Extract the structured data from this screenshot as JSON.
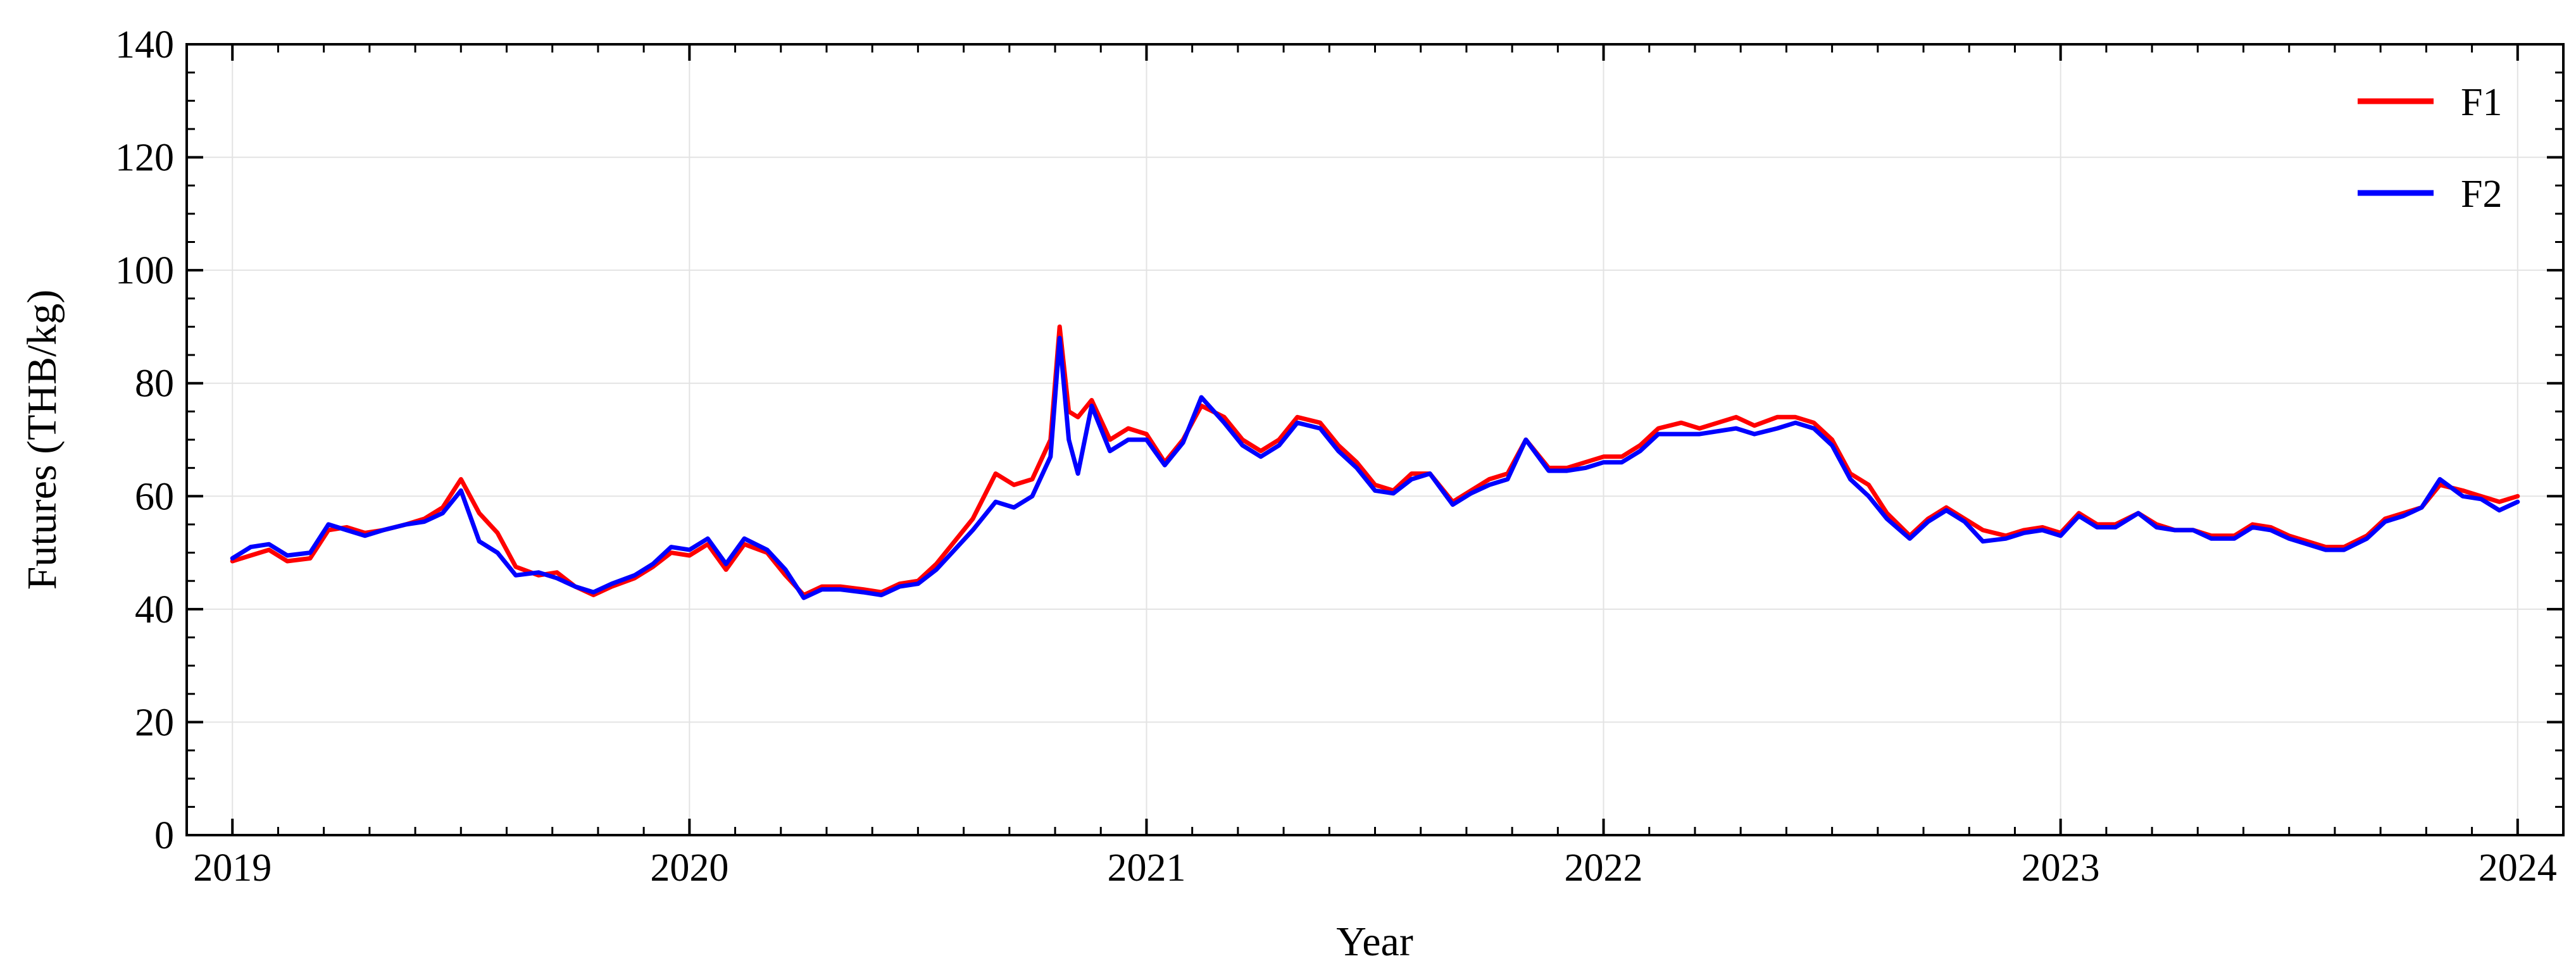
{
  "chart_data": {
    "type": "line",
    "title": "",
    "xlabel": "Year",
    "ylabel": "Futures (THB/kg)",
    "xlim": [
      2018.9,
      2024.1
    ],
    "ylim": [
      0,
      140
    ],
    "x_ticks": [
      2019,
      2020,
      2021,
      2022,
      2023,
      2024
    ],
    "x_tick_labels": [
      "2019",
      "2020",
      "2021",
      "2022",
      "2023",
      "2024"
    ],
    "y_ticks": [
      0,
      20,
      40,
      60,
      80,
      100,
      120,
      140
    ],
    "y_tick_labels": [
      "0",
      "20",
      "40",
      "60",
      "80",
      "100",
      "120",
      "140"
    ],
    "grid": true,
    "legend": "top-right",
    "series": [
      {
        "name": "F1",
        "color": "#ff0000",
        "x": [
          2019.0,
          2019.04,
          2019.08,
          2019.12,
          2019.17,
          2019.21,
          2019.25,
          2019.29,
          2019.33,
          2019.38,
          2019.42,
          2019.46,
          2019.5,
          2019.54,
          2019.58,
          2019.62,
          2019.67,
          2019.71,
          2019.75,
          2019.79,
          2019.83,
          2019.88,
          2019.92,
          2019.96,
          2020.0,
          2020.04,
          2020.08,
          2020.12,
          2020.17,
          2020.21,
          2020.25,
          2020.29,
          2020.33,
          2020.38,
          2020.42,
          2020.46,
          2020.5,
          2020.54,
          2020.58,
          2020.62,
          2020.67,
          2020.71,
          2020.75,
          2020.79,
          2020.81,
          2020.83,
          2020.85,
          2020.88,
          2020.92,
          2020.96,
          2021.0,
          2021.04,
          2021.08,
          2021.12,
          2021.17,
          2021.21,
          2021.25,
          2021.29,
          2021.33,
          2021.38,
          2021.42,
          2021.46,
          2021.5,
          2021.54,
          2021.58,
          2021.62,
          2021.67,
          2021.71,
          2021.75,
          2021.79,
          2021.83,
          2021.88,
          2021.92,
          2021.96,
          2022.0,
          2022.04,
          2022.08,
          2022.12,
          2022.17,
          2022.21,
          2022.25,
          2022.29,
          2022.33,
          2022.38,
          2022.42,
          2022.46,
          2022.5,
          2022.54,
          2022.58,
          2022.62,
          2022.67,
          2022.71,
          2022.75,
          2022.79,
          2022.83,
          2022.88,
          2022.92,
          2022.96,
          2023.0,
          2023.04,
          2023.08,
          2023.12,
          2023.17,
          2023.21,
          2023.25,
          2023.29,
          2023.33,
          2023.38,
          2023.42,
          2023.46,
          2023.5,
          2023.54,
          2023.58,
          2023.62,
          2023.67,
          2023.71,
          2023.75,
          2023.79,
          2023.83,
          2023.88,
          2023.92,
          2023.96,
          2024.0
        ],
        "y": [
          48.5,
          49.5,
          50.5,
          48.5,
          49.0,
          54.0,
          54.5,
          53.5,
          54.0,
          55.0,
          56.0,
          58.0,
          63.0,
          57.0,
          53.5,
          47.5,
          46.0,
          46.5,
          44.0,
          42.5,
          44.0,
          45.5,
          47.5,
          50.0,
          49.5,
          51.5,
          47.0,
          51.5,
          50.0,
          46.0,
          42.5,
          44.0,
          44.0,
          43.5,
          43.0,
          44.5,
          45.0,
          48.0,
          52.0,
          56.0,
          64.0,
          62.0,
          63.0,
          70.0,
          90.0,
          75.0,
          74.0,
          77.0,
          70.0,
          72.0,
          71.0,
          66.0,
          70.0,
          76.0,
          74.0,
          70.0,
          68.0,
          70.0,
          74.0,
          73.0,
          69.0,
          66.0,
          62.0,
          61.0,
          64.0,
          64.0,
          59.0,
          61.0,
          63.0,
          64.0,
          70.0,
          65.0,
          65.0,
          66.0,
          67.0,
          67.0,
          69.0,
          72.0,
          73.0,
          72.0,
          73.0,
          74.0,
          72.5,
          74.0,
          74.0,
          73.0,
          70.0,
          64.0,
          62.0,
          57.0,
          53.0,
          56.0,
          58.0,
          56.0,
          54.0,
          53.0,
          54.0,
          54.5,
          53.5,
          57.0,
          55.0,
          55.0,
          57.0,
          55.0,
          54.0,
          54.0,
          53.0,
          53.0,
          55.0,
          54.5,
          53.0,
          52.0,
          51.0,
          51.0,
          53.0,
          56.0,
          57.0,
          58.0,
          62.0,
          61.0,
          60.0,
          59.0,
          60.0
        ]
      },
      {
        "name": "F2",
        "color": "#0000ff",
        "x": [
          2019.0,
          2019.04,
          2019.08,
          2019.12,
          2019.17,
          2019.21,
          2019.25,
          2019.29,
          2019.33,
          2019.38,
          2019.42,
          2019.46,
          2019.5,
          2019.54,
          2019.58,
          2019.62,
          2019.67,
          2019.71,
          2019.75,
          2019.79,
          2019.83,
          2019.88,
          2019.92,
          2019.96,
          2020.0,
          2020.04,
          2020.08,
          2020.12,
          2020.17,
          2020.21,
          2020.25,
          2020.29,
          2020.33,
          2020.38,
          2020.42,
          2020.46,
          2020.5,
          2020.54,
          2020.58,
          2020.62,
          2020.67,
          2020.71,
          2020.75,
          2020.79,
          2020.81,
          2020.83,
          2020.85,
          2020.88,
          2020.92,
          2020.96,
          2021.0,
          2021.04,
          2021.08,
          2021.12,
          2021.17,
          2021.21,
          2021.25,
          2021.29,
          2021.33,
          2021.38,
          2021.42,
          2021.46,
          2021.5,
          2021.54,
          2021.58,
          2021.62,
          2021.67,
          2021.71,
          2021.75,
          2021.79,
          2021.83,
          2021.88,
          2021.92,
          2021.96,
          2022.0,
          2022.04,
          2022.08,
          2022.12,
          2022.17,
          2022.21,
          2022.25,
          2022.29,
          2022.33,
          2022.38,
          2022.42,
          2022.46,
          2022.5,
          2022.54,
          2022.58,
          2022.62,
          2022.67,
          2022.71,
          2022.75,
          2022.79,
          2022.83,
          2022.88,
          2022.92,
          2022.96,
          2023.0,
          2023.04,
          2023.08,
          2023.12,
          2023.17,
          2023.21,
          2023.25,
          2023.29,
          2023.33,
          2023.38,
          2023.42,
          2023.46,
          2023.5,
          2023.54,
          2023.58,
          2023.62,
          2023.67,
          2023.71,
          2023.75,
          2023.79,
          2023.83,
          2023.88,
          2023.92,
          2023.96,
          2024.0
        ],
        "y": [
          49.0,
          51.0,
          51.5,
          49.5,
          50.0,
          55.0,
          54.0,
          53.0,
          54.0,
          55.0,
          55.5,
          57.0,
          61.0,
          52.0,
          50.0,
          46.0,
          46.5,
          45.5,
          44.0,
          43.0,
          44.5,
          46.0,
          48.0,
          51.0,
          50.5,
          52.5,
          48.0,
          52.5,
          50.5,
          47.0,
          42.0,
          43.5,
          43.5,
          43.0,
          42.5,
          44.0,
          44.5,
          47.0,
          50.5,
          54.0,
          59.0,
          58.0,
          60.0,
          67.0,
          88.0,
          70.0,
          64.0,
          76.0,
          68.0,
          70.0,
          70.0,
          65.5,
          69.5,
          77.5,
          73.0,
          69.0,
          67.0,
          69.0,
          73.0,
          72.0,
          68.0,
          65.0,
          61.0,
          60.5,
          63.0,
          64.0,
          58.5,
          60.5,
          62.0,
          63.0,
          70.0,
          64.5,
          64.5,
          65.0,
          66.0,
          66.0,
          68.0,
          71.0,
          71.0,
          71.0,
          71.5,
          72.0,
          71.0,
          72.0,
          73.0,
          72.0,
          69.0,
          63.0,
          60.0,
          56.0,
          52.5,
          55.5,
          57.5,
          55.5,
          52.0,
          52.5,
          53.5,
          54.0,
          53.0,
          56.5,
          54.5,
          54.5,
          57.0,
          54.5,
          54.0,
          54.0,
          52.5,
          52.5,
          54.5,
          54.0,
          52.5,
          51.5,
          50.5,
          50.5,
          52.5,
          55.5,
          56.5,
          58.0,
          63.0,
          60.0,
          59.5,
          57.5,
          59.0
        ]
      }
    ]
  }
}
